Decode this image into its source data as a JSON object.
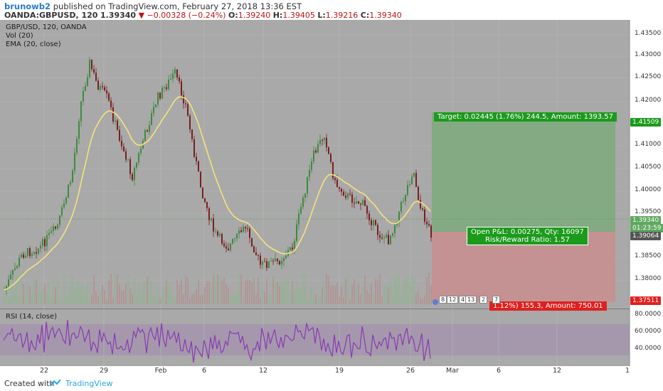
{
  "header": {
    "author": "brunowb2",
    "published": " published on TradingView.com, February 27, 2018 13:36 EST",
    "symbol": "OANDA:GBPUSD, 120",
    "last": "1.39340",
    "change": "▼ −0.00328 (−0.24%)",
    "open_label": "O:",
    "open": "1.39240",
    "high_label": "H:",
    "high": "1.39405",
    "low_label": "L:",
    "low": "1.39216",
    "close_label": "C:",
    "close": "1.39340"
  },
  "legend": {
    "line1": "GBP/USD, 120, OANDA",
    "line2": "Vol (20)",
    "line3": "EMA (20, close)",
    "rsi": "RSI (14, close)"
  },
  "price_axis": [
    "1.43500",
    "1.43000",
    "1.42500",
    "1.42000",
    "1.41000",
    "1.40500",
    "1.40000",
    "1.39500",
    "1.38500",
    "1.38000"
  ],
  "price_tags": {
    "target": "1.41509",
    "last": "1.39340",
    "countdown": "01:23:59",
    "entry": "1.39064",
    "stop": "1.37511"
  },
  "rsi_axis": [
    "80.0000",
    "60.0000",
    "40.0000"
  ],
  "time_axis": [
    "22",
    "29",
    "Feb",
    "6",
    "12",
    "19",
    "26",
    "Mar",
    "6",
    "12",
    "1"
  ],
  "position": {
    "target_text": "Target: 0.02445 (1.76%) 244.5, Amount: 1393.57",
    "open_pl": "Open P&L: 0.00275, Qty: 16097",
    "rr": "Risk/Reward Ratio: 1.57",
    "stop_text": "1.12%) 155.3, Amount: 750.01"
  },
  "events": [
    "8",
    "12",
    "4",
    "13",
    "2",
    "7"
  ],
  "footer": {
    "created_with": "Created with",
    "brand": "TradingView"
  },
  "colors": {
    "up": "#3f8a3f",
    "down": "#7a1f1f",
    "ema": "#f3e37c",
    "rsi": "#8a3ab2",
    "target_zone": "#7daa7d",
    "stop_zone": "#c98e8e",
    "pane": "#a9a9a9"
  }
}
